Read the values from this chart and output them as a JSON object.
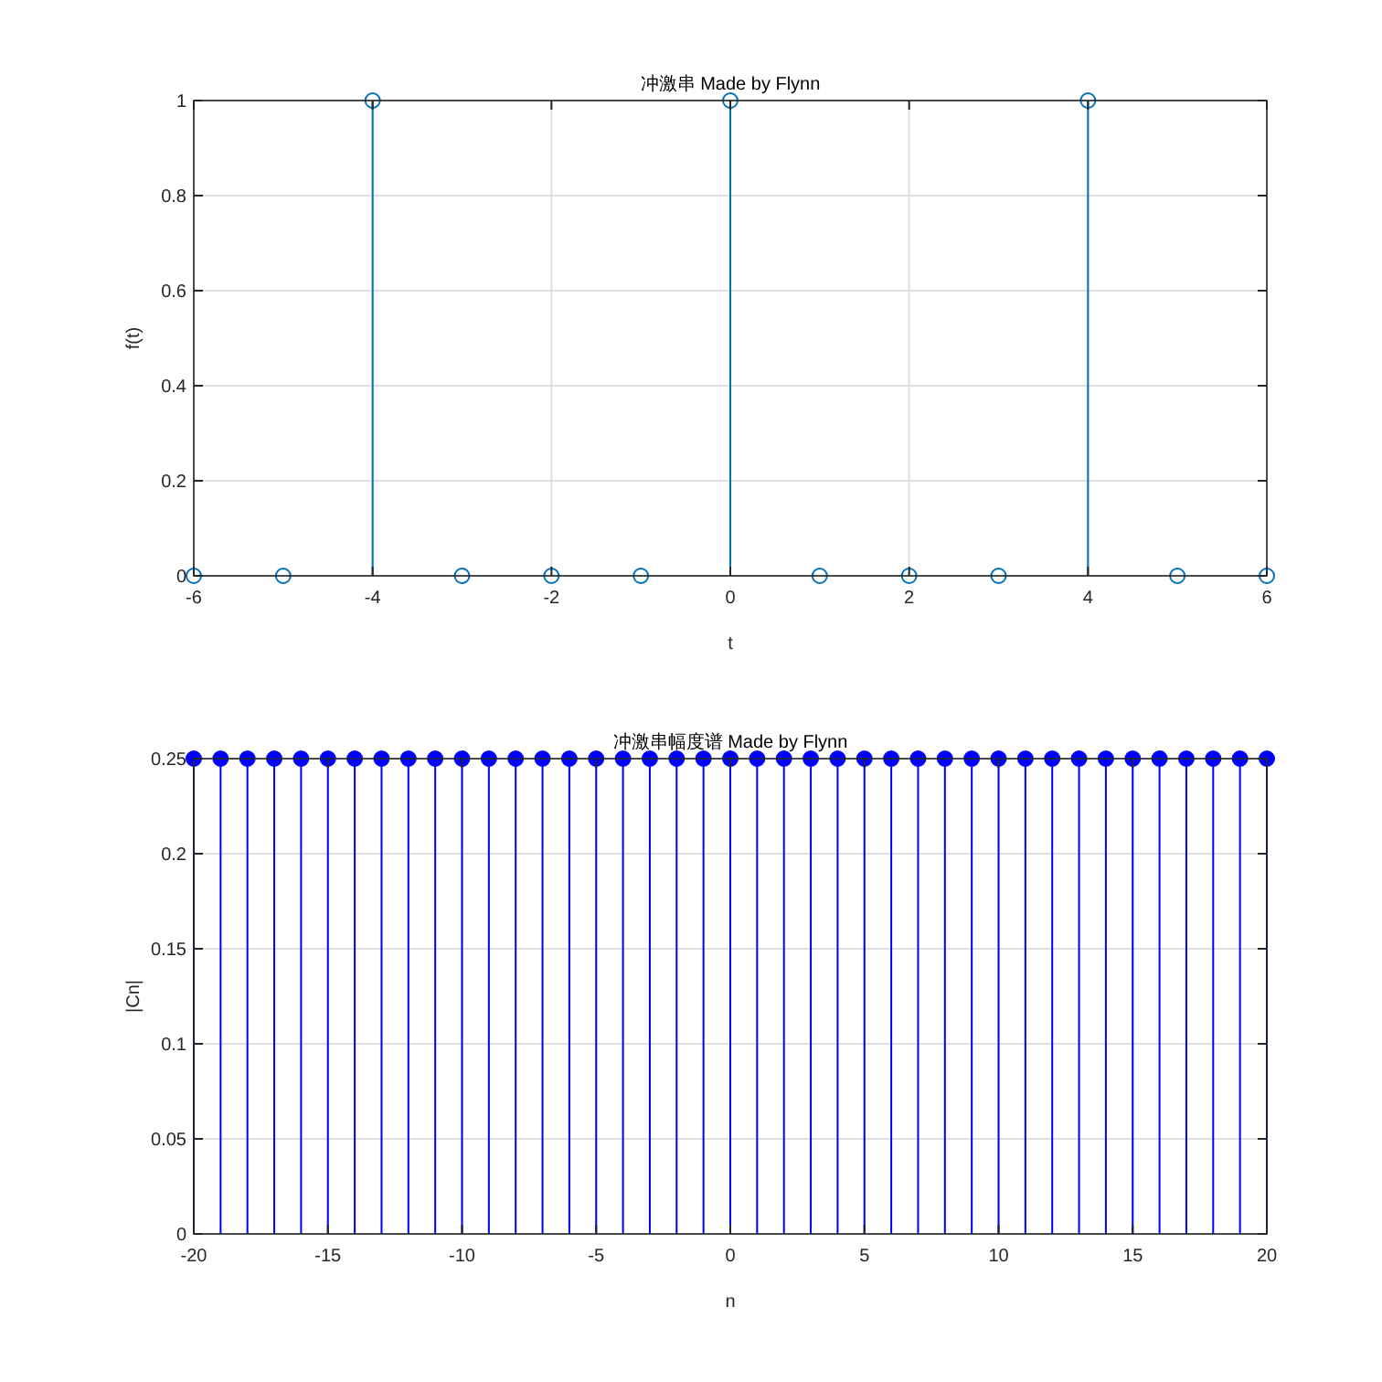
{
  "chart_data": [
    {
      "type": "lollipop",
      "title": "冲激串 Made by Flynn",
      "xlabel": "t",
      "ylabel": "f(t)",
      "x": [
        -6,
        -5,
        -4,
        -3,
        -2,
        -1,
        0,
        1,
        2,
        3,
        4,
        5,
        6
      ],
      "series": [
        {
          "color": "#0072bd",
          "values": [
            0,
            0,
            1,
            0,
            0,
            0,
            1,
            0,
            0,
            0,
            1,
            0,
            0
          ]
        }
      ],
      "xlim": [
        -6,
        6
      ],
      "xticks": [
        -6,
        -4,
        -2,
        0,
        2,
        4,
        6
      ],
      "ylim": [
        0,
        1
      ],
      "yticks": [
        0,
        0.2,
        0.4,
        0.6,
        0.8,
        1
      ],
      "grid": true,
      "marker": "circle"
    },
    {
      "type": "lollipop",
      "title": "冲激串幅度谱 Made by Flynn",
      "xlabel": "n",
      "ylabel": "|Cn|",
      "x": [
        -20,
        -19,
        -18,
        -17,
        -16,
        -15,
        -14,
        -13,
        -12,
        -11,
        -10,
        -9,
        -8,
        -7,
        -6,
        -5,
        -4,
        -3,
        -2,
        -1,
        0,
        1,
        2,
        3,
        4,
        5,
        6,
        7,
        8,
        9,
        10,
        11,
        12,
        13,
        14,
        15,
        16,
        17,
        18,
        19,
        20
      ],
      "series": [
        {
          "color": "#0000ff",
          "values": [
            0.25,
            0.25,
            0.25,
            0.25,
            0.25,
            0.25,
            0.25,
            0.25,
            0.25,
            0.25,
            0.25,
            0.25,
            0.25,
            0.25,
            0.25,
            0.25,
            0.25,
            0.25,
            0.25,
            0.25,
            0.25,
            0.25,
            0.25,
            0.25,
            0.25,
            0.25,
            0.25,
            0.25,
            0.25,
            0.25,
            0.25,
            0.25,
            0.25,
            0.25,
            0.25,
            0.25,
            0.25,
            0.25,
            0.25,
            0.25,
            0.25
          ]
        }
      ],
      "xlim": [
        -20,
        20
      ],
      "xticks": [
        -20,
        -15,
        -10,
        -5,
        0,
        5,
        10,
        15,
        20
      ],
      "ylim": [
        0,
        0.25
      ],
      "yticks": [
        0,
        0.05,
        0.1,
        0.15,
        0.2,
        0.25
      ],
      "grid": true,
      "marker": "circle"
    }
  ]
}
